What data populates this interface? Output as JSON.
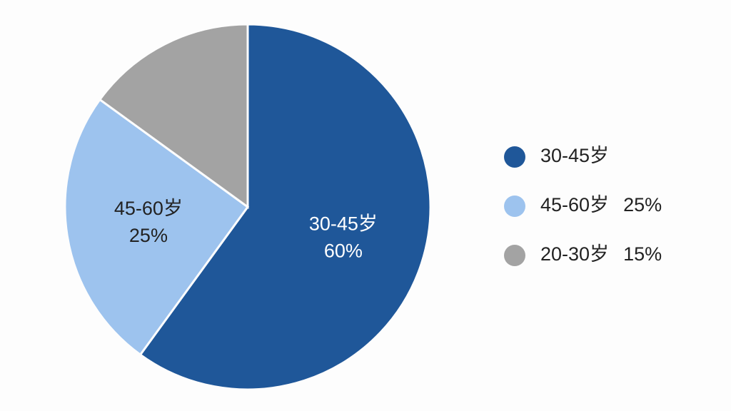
{
  "chart_data": {
    "type": "pie",
    "categories": [
      "30-45岁",
      "45-60岁",
      "20-30岁"
    ],
    "values": [
      60,
      25,
      15
    ],
    "value_labels": [
      "60%",
      "25%",
      "15%"
    ],
    "colors": [
      "#1f5799",
      "#9dc3ee",
      "#a3a3a3"
    ],
    "inner_labels": [
      0,
      1
    ],
    "legend_values": [
      1,
      2
    ]
  }
}
